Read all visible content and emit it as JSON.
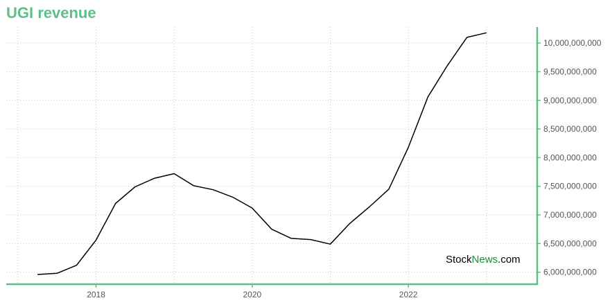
{
  "title": "UGI revenue",
  "watermark": {
    "part1": "Stock",
    "part2": "News",
    "part3": ".com"
  },
  "colors": {
    "accent": "#5dbf8a",
    "line": "#000000",
    "grid": "#a9d8c6"
  },
  "chart_data": {
    "type": "line",
    "title": "UGI revenue",
    "xlabel": "",
    "ylabel": "",
    "grid": true,
    "xlim": [
      2016.85,
      2023.65
    ],
    "ylim": [
      5790000000,
      10280000000
    ],
    "x_ticks": [
      {
        "value": 2018,
        "label": "2018"
      },
      {
        "value": 2020,
        "label": "2020"
      },
      {
        "value": 2022,
        "label": "2022"
      }
    ],
    "y_ticks": [
      {
        "value": 6000000000,
        "label": "6,000,000,000"
      },
      {
        "value": 6500000000,
        "label": "6,500,000,000"
      },
      {
        "value": 7000000000,
        "label": "7,000,000,000"
      },
      {
        "value": 7500000000,
        "label": "7,500,000,000"
      },
      {
        "value": 8000000000,
        "label": "8,000,000,000"
      },
      {
        "value": 8500000000,
        "label": "8,500,000,000"
      },
      {
        "value": 9000000000,
        "label": "9,000,000,000"
      },
      {
        "value": 9500000000,
        "label": "9,500,000,000"
      },
      {
        "value": 10000000000,
        "label": "10,000,000,000"
      }
    ],
    "series": [
      {
        "x": [
          2017.25,
          2017.5,
          2017.75,
          2018.0,
          2018.25,
          2018.5,
          2018.75,
          2019.0,
          2019.25,
          2019.5,
          2019.75,
          2020.0,
          2020.25,
          2020.5,
          2020.75,
          2021.0,
          2021.25,
          2021.5,
          2021.75,
          2022.0,
          2022.25,
          2022.5,
          2022.75,
          2023.0
        ],
        "values": [
          5960000000,
          5980000000,
          6120000000,
          6560000000,
          7200000000,
          7490000000,
          7640000000,
          7720000000,
          7510000000,
          7440000000,
          7310000000,
          7120000000,
          6750000000,
          6590000000,
          6570000000,
          6490000000,
          6850000000,
          7140000000,
          7450000000,
          8180000000,
          9060000000,
          9610000000,
          10100000000,
          10180000000
        ]
      }
    ]
  }
}
